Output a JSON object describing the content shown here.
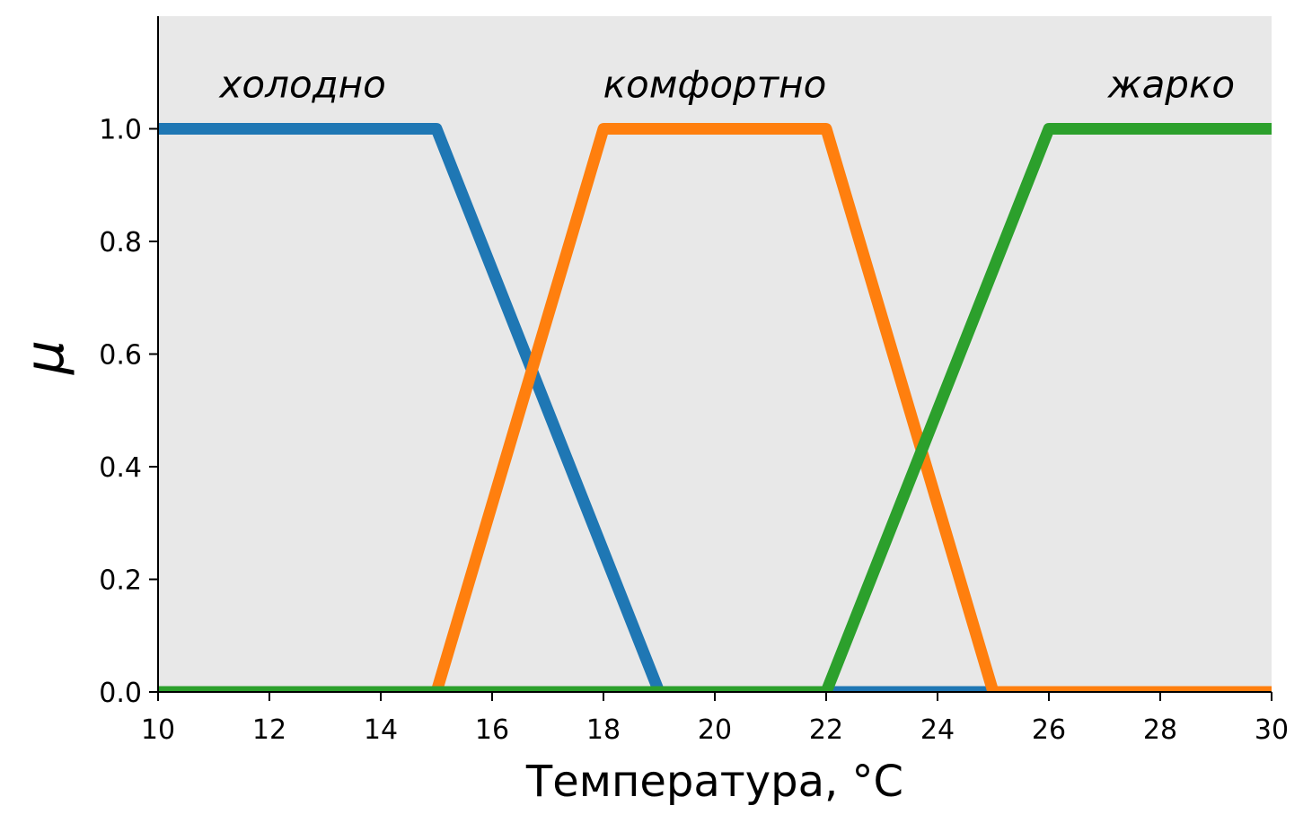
{
  "chart_data": {
    "type": "line",
    "title": "",
    "xlabel": "Температура, °C",
    "ylabel": "μ",
    "xlim": [
      10,
      30
    ],
    "ylim": [
      0,
      1.2
    ],
    "x_ticks": [
      "10",
      "12",
      "14",
      "16",
      "18",
      "20",
      "22",
      "24",
      "26",
      "28",
      "30"
    ],
    "y_ticks": [
      "0.0",
      "0.2",
      "0.4",
      "0.6",
      "0.8",
      "1.0"
    ],
    "grid": false,
    "background_color": "#e8e8e8",
    "series": [
      {
        "name": "холодно",
        "color": "#1f77b4",
        "x": [
          10,
          15,
          19,
          30
        ],
        "y": [
          1,
          1,
          0,
          0
        ]
      },
      {
        "name": "комфортно",
        "color": "#ff7f0e",
        "x": [
          10,
          15,
          18,
          22,
          25,
          30
        ],
        "y": [
          0,
          0,
          1,
          1,
          0,
          0
        ]
      },
      {
        "name": "жарко",
        "color": "#2ca02c",
        "x": [
          10,
          22,
          26,
          30
        ],
        "y": [
          0,
          0,
          1,
          1
        ]
      }
    ],
    "annotations": [
      {
        "text": "холодно",
        "x": 12.6,
        "y": 1.08,
        "anchor": "middle"
      },
      {
        "text": "комфортно",
        "x": 20.0,
        "y": 1.08,
        "anchor": "middle"
      },
      {
        "text": "жарко",
        "x": 28.2,
        "y": 1.08,
        "anchor": "middle"
      }
    ]
  }
}
